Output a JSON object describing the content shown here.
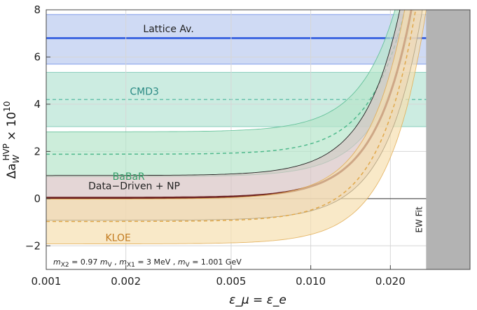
{
  "chart_data": {
    "type": "line",
    "xscale": "log",
    "xlim": [
      0.001,
      0.04
    ],
    "ylim": [
      -3,
      8
    ],
    "grid": true,
    "xlabel": "ε_μ = ε_e",
    "ylabel_main": "Δa",
    "ylabel_sub": "W",
    "ylabel_sup": "HVP",
    "ylabel_factor": "× 10",
    "ylabel_factor_exp": "10",
    "x_ticks": [
      {
        "value": 0.001,
        "label": "0.001"
      },
      {
        "value": 0.002,
        "label": "0.002"
      },
      {
        "value": 0.005,
        "label": "0.005"
      },
      {
        "value": 0.01,
        "label": "0.010"
      },
      {
        "value": 0.02,
        "label": "0.020"
      }
    ],
    "y_ticks": [
      {
        "value": -2,
        "label": "−2"
      },
      {
        "value": 0,
        "label": "0"
      },
      {
        "value": 2,
        "label": "2"
      },
      {
        "value": 4,
        "label": "4"
      },
      {
        "value": 6,
        "label": "6"
      },
      {
        "value": 8,
        "label": "8"
      }
    ],
    "horizontal_bands": [
      {
        "name": "Lattice Av.",
        "center": 6.8,
        "low": 5.7,
        "high": 7.8,
        "fill": "#c7d3f2",
        "line": "#4169e1",
        "label_x": 0.0029,
        "label_y": 7.2,
        "label_color": "#222222"
      },
      {
        "name": "CMD3",
        "center": 4.2,
        "low": 3.05,
        "high": 5.35,
        "fill": "#c3e9dc",
        "line": "#48b39a",
        "label_x": 0.00235,
        "label_y": 4.55,
        "label_color": "#2a8a84"
      }
    ],
    "curve_model": "y = base + k*(x/0.0245)^3.2",
    "curves": [
      {
        "name": "BaBaR",
        "base": 1.88,
        "k_center": 7.8,
        "k_low": 7.0,
        "k_high": 8.7,
        "offset_low": -0.95,
        "offset_high": 0.95,
        "fill": "#b7e6cb",
        "line": "#4fb98c",
        "dashed": true,
        "label_x": 0.00205,
        "label_y": 0.95,
        "label_color": "#34a06a"
      },
      {
        "name": "Data−Driven + NP",
        "base": 0.03,
        "k_center": 8.5,
        "k_low": 7.0,
        "k_high": 10.3,
        "offset_low": -0.95,
        "offset_high": 0.95,
        "fill": "#d8c4c4",
        "line": "#6e2323",
        "dashed": false,
        "label_x": 0.00215,
        "label_y": 0.55,
        "label_color": "#222222"
      },
      {
        "name": "KLOE",
        "base": -0.97,
        "k_center": 8.5,
        "k_low": 7.0,
        "k_high": 10.3,
        "offset_low": -0.95,
        "offset_high": 0.95,
        "fill": "#f6dfb0",
        "line": "#e0a84a",
        "dashed": true,
        "label_x": 0.00187,
        "label_y": -1.65,
        "label_color": "#c27a1e"
      }
    ],
    "excluded_region": {
      "name": "EW Fit",
      "x_from": 0.0273,
      "fill": "#b3b3b3"
    },
    "annotation": {
      "text": "m_X2 = 0.97 m_V , m_X1 = 3 MeV , m_V = 1.001 GeV",
      "parts": [
        {
          "t": "m",
          "style": "italic"
        },
        {
          "t": "X2",
          "style": "sub"
        },
        {
          "t": " = 0.97 ",
          "style": "normal"
        },
        {
          "t": "m",
          "style": "italic"
        },
        {
          "t": "V",
          "style": "sub"
        },
        {
          "t": " , ",
          "style": "normal"
        },
        {
          "t": "m",
          "style": "italic"
        },
        {
          "t": "X1",
          "style": "sub"
        },
        {
          "t": " = 3 MeV , ",
          "style": "normal"
        },
        {
          "t": "m",
          "style": "italic"
        },
        {
          "t": "V",
          "style": "sub"
        },
        {
          "t": " = 1.001 GeV",
          "style": "normal"
        }
      ]
    },
    "colors": {
      "zero_line": "#333333",
      "grid": "#d6d6d6",
      "frame": "#444444"
    }
  }
}
